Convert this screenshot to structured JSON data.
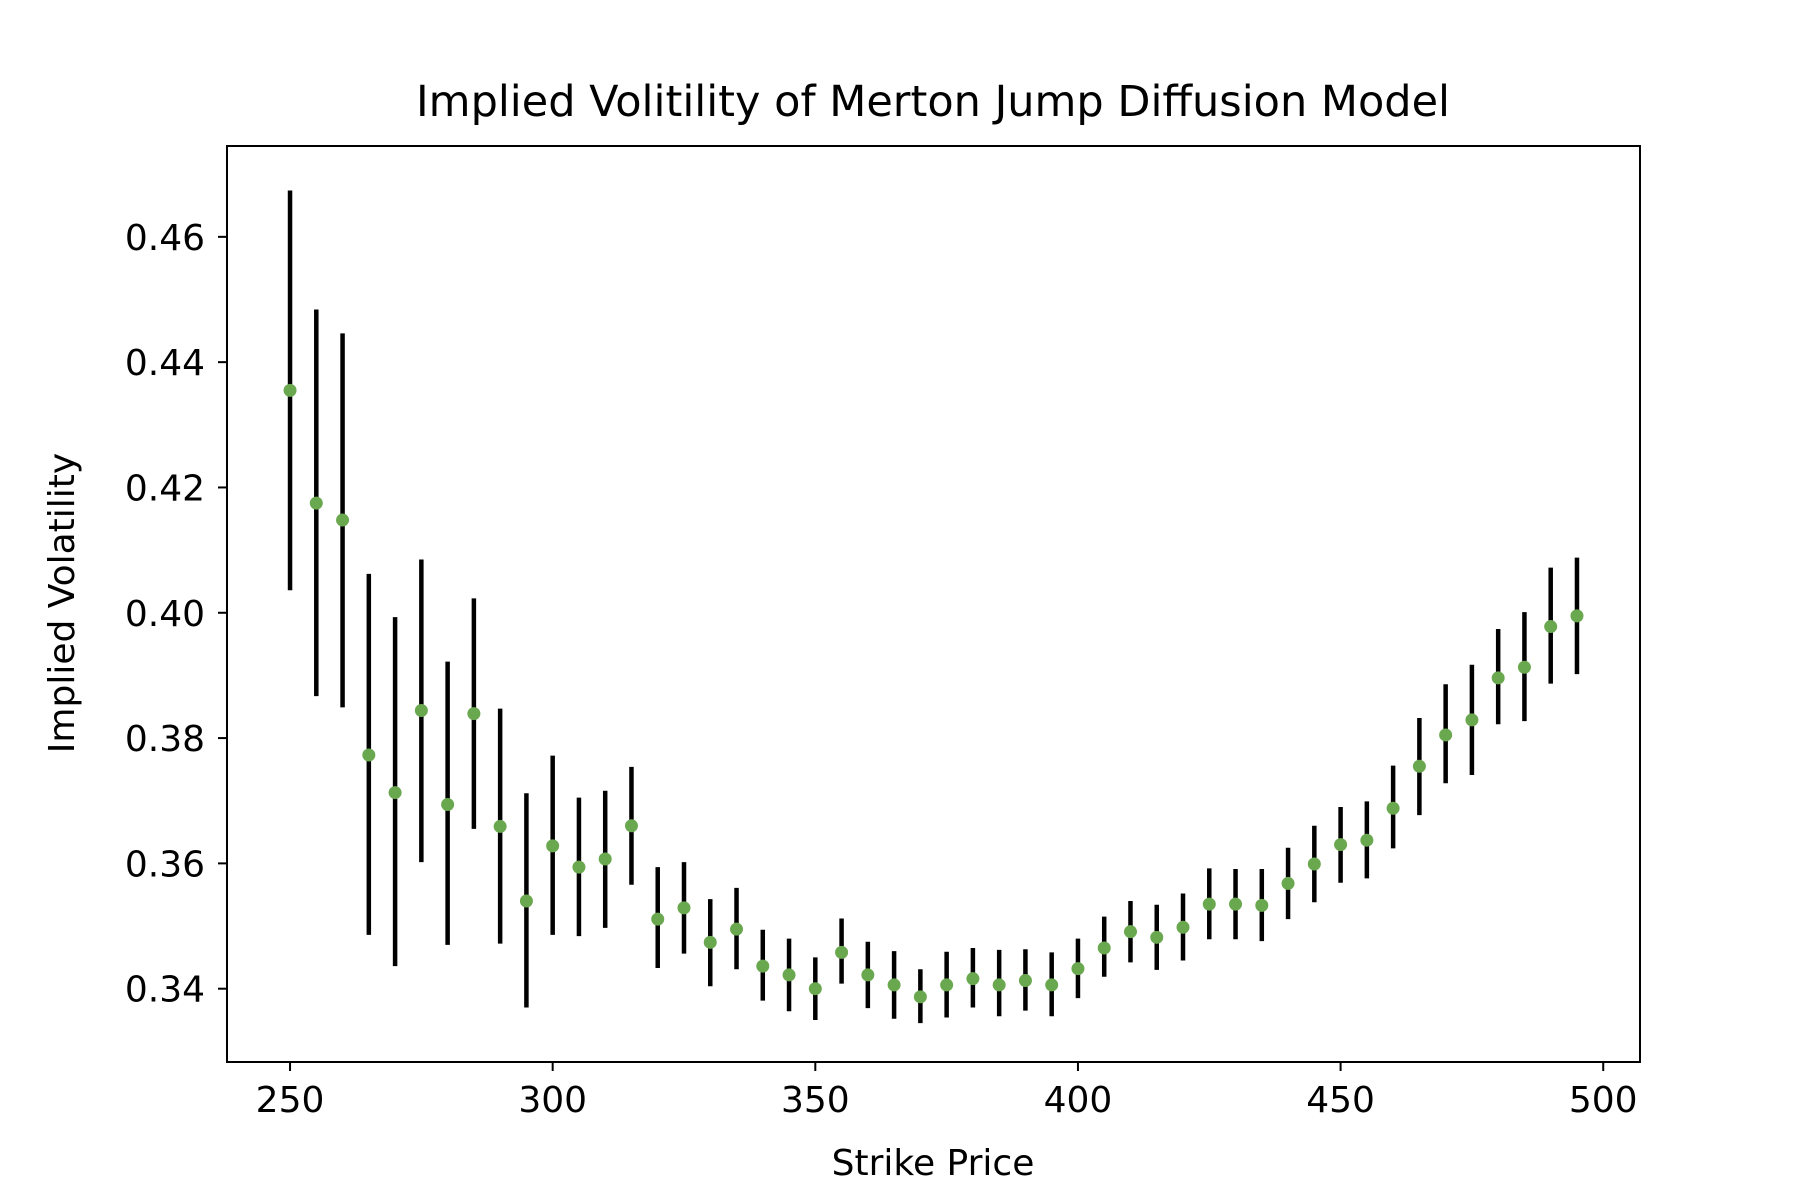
{
  "chart_data": {
    "type": "scatter",
    "title": "Implied Volitility of Merton Jump Diffusion Model",
    "xlabel": "Strike Price",
    "ylabel": "Implied Volatility",
    "xlim": [
      238,
      507
    ],
    "ylim": [
      0.3283,
      0.4745
    ],
    "xticks": [
      250,
      300,
      350,
      400,
      450,
      500
    ],
    "yticks": [
      0.34,
      0.36,
      0.38,
      0.4,
      0.42,
      0.44,
      0.46
    ],
    "ytick_labels": [
      "0.34",
      "0.36",
      "0.38",
      "0.40",
      "0.42",
      "0.44",
      "0.46"
    ],
    "grid": false,
    "legend": "none",
    "colors": {
      "point": "#6aa84f",
      "errorbar": "#000000",
      "axes": "#000000"
    },
    "series": [
      {
        "x": [
          250,
          255,
          260,
          265,
          270,
          275,
          280,
          285,
          290,
          295,
          300,
          305,
          310,
          315,
          320,
          325,
          330,
          335,
          340,
          345,
          350,
          355,
          360,
          365,
          370,
          375,
          380,
          385,
          390,
          395,
          400,
          405,
          410,
          415,
          420,
          425,
          430,
          435,
          440,
          445,
          450,
          455,
          460,
          465,
          470,
          475,
          480,
          485,
          490,
          495
        ],
        "y": [
          0.4355,
          0.4175,
          0.4148,
          0.3773,
          0.3713,
          0.3844,
          0.3694,
          0.3839,
          0.3659,
          0.354,
          0.3628,
          0.3594,
          0.3607,
          0.366,
          0.3511,
          0.3529,
          0.3474,
          0.3495,
          0.3436,
          0.3422,
          0.34,
          0.3458,
          0.3422,
          0.3406,
          0.3387,
          0.3406,
          0.3416,
          0.3406,
          0.3413,
          0.3406,
          0.3432,
          0.3465,
          0.3491,
          0.3482,
          0.3498,
          0.3535,
          0.3535,
          0.3533,
          0.3568,
          0.3599,
          0.363,
          0.3637,
          0.3688,
          0.3755,
          0.3805,
          0.3829,
          0.3896,
          0.3913,
          0.3978,
          0.3995
        ],
        "ylow": [
          0.4036,
          0.3867,
          0.3849,
          0.3486,
          0.3436,
          0.3602,
          0.347,
          0.3655,
          0.3472,
          0.337,
          0.3486,
          0.3484,
          0.3497,
          0.3566,
          0.3433,
          0.3456,
          0.3404,
          0.3431,
          0.3381,
          0.3364,
          0.335,
          0.3408,
          0.3369,
          0.3352,
          0.3345,
          0.3354,
          0.337,
          0.3356,
          0.3365,
          0.3356,
          0.3385,
          0.3419,
          0.3442,
          0.343,
          0.3445,
          0.3479,
          0.3479,
          0.3476,
          0.3511,
          0.3538,
          0.3569,
          0.3576,
          0.3624,
          0.3677,
          0.3728,
          0.3741,
          0.3822,
          0.3827,
          0.3887,
          0.3902
        ],
        "yhigh": [
          0.4674,
          0.4484,
          0.4446,
          0.4062,
          0.3993,
          0.4085,
          0.3922,
          0.4023,
          0.3847,
          0.3712,
          0.3772,
          0.3705,
          0.3716,
          0.3754,
          0.3594,
          0.3602,
          0.3543,
          0.3561,
          0.3494,
          0.348,
          0.345,
          0.3512,
          0.3475,
          0.346,
          0.3431,
          0.3459,
          0.3465,
          0.3462,
          0.3463,
          0.3458,
          0.348,
          0.3515,
          0.354,
          0.3534,
          0.3552,
          0.3592,
          0.3591,
          0.3591,
          0.3625,
          0.366,
          0.369,
          0.3699,
          0.3756,
          0.3832,
          0.3886,
          0.3917,
          0.3974,
          0.4001,
          0.4072,
          0.4088
        ]
      }
    ]
  }
}
